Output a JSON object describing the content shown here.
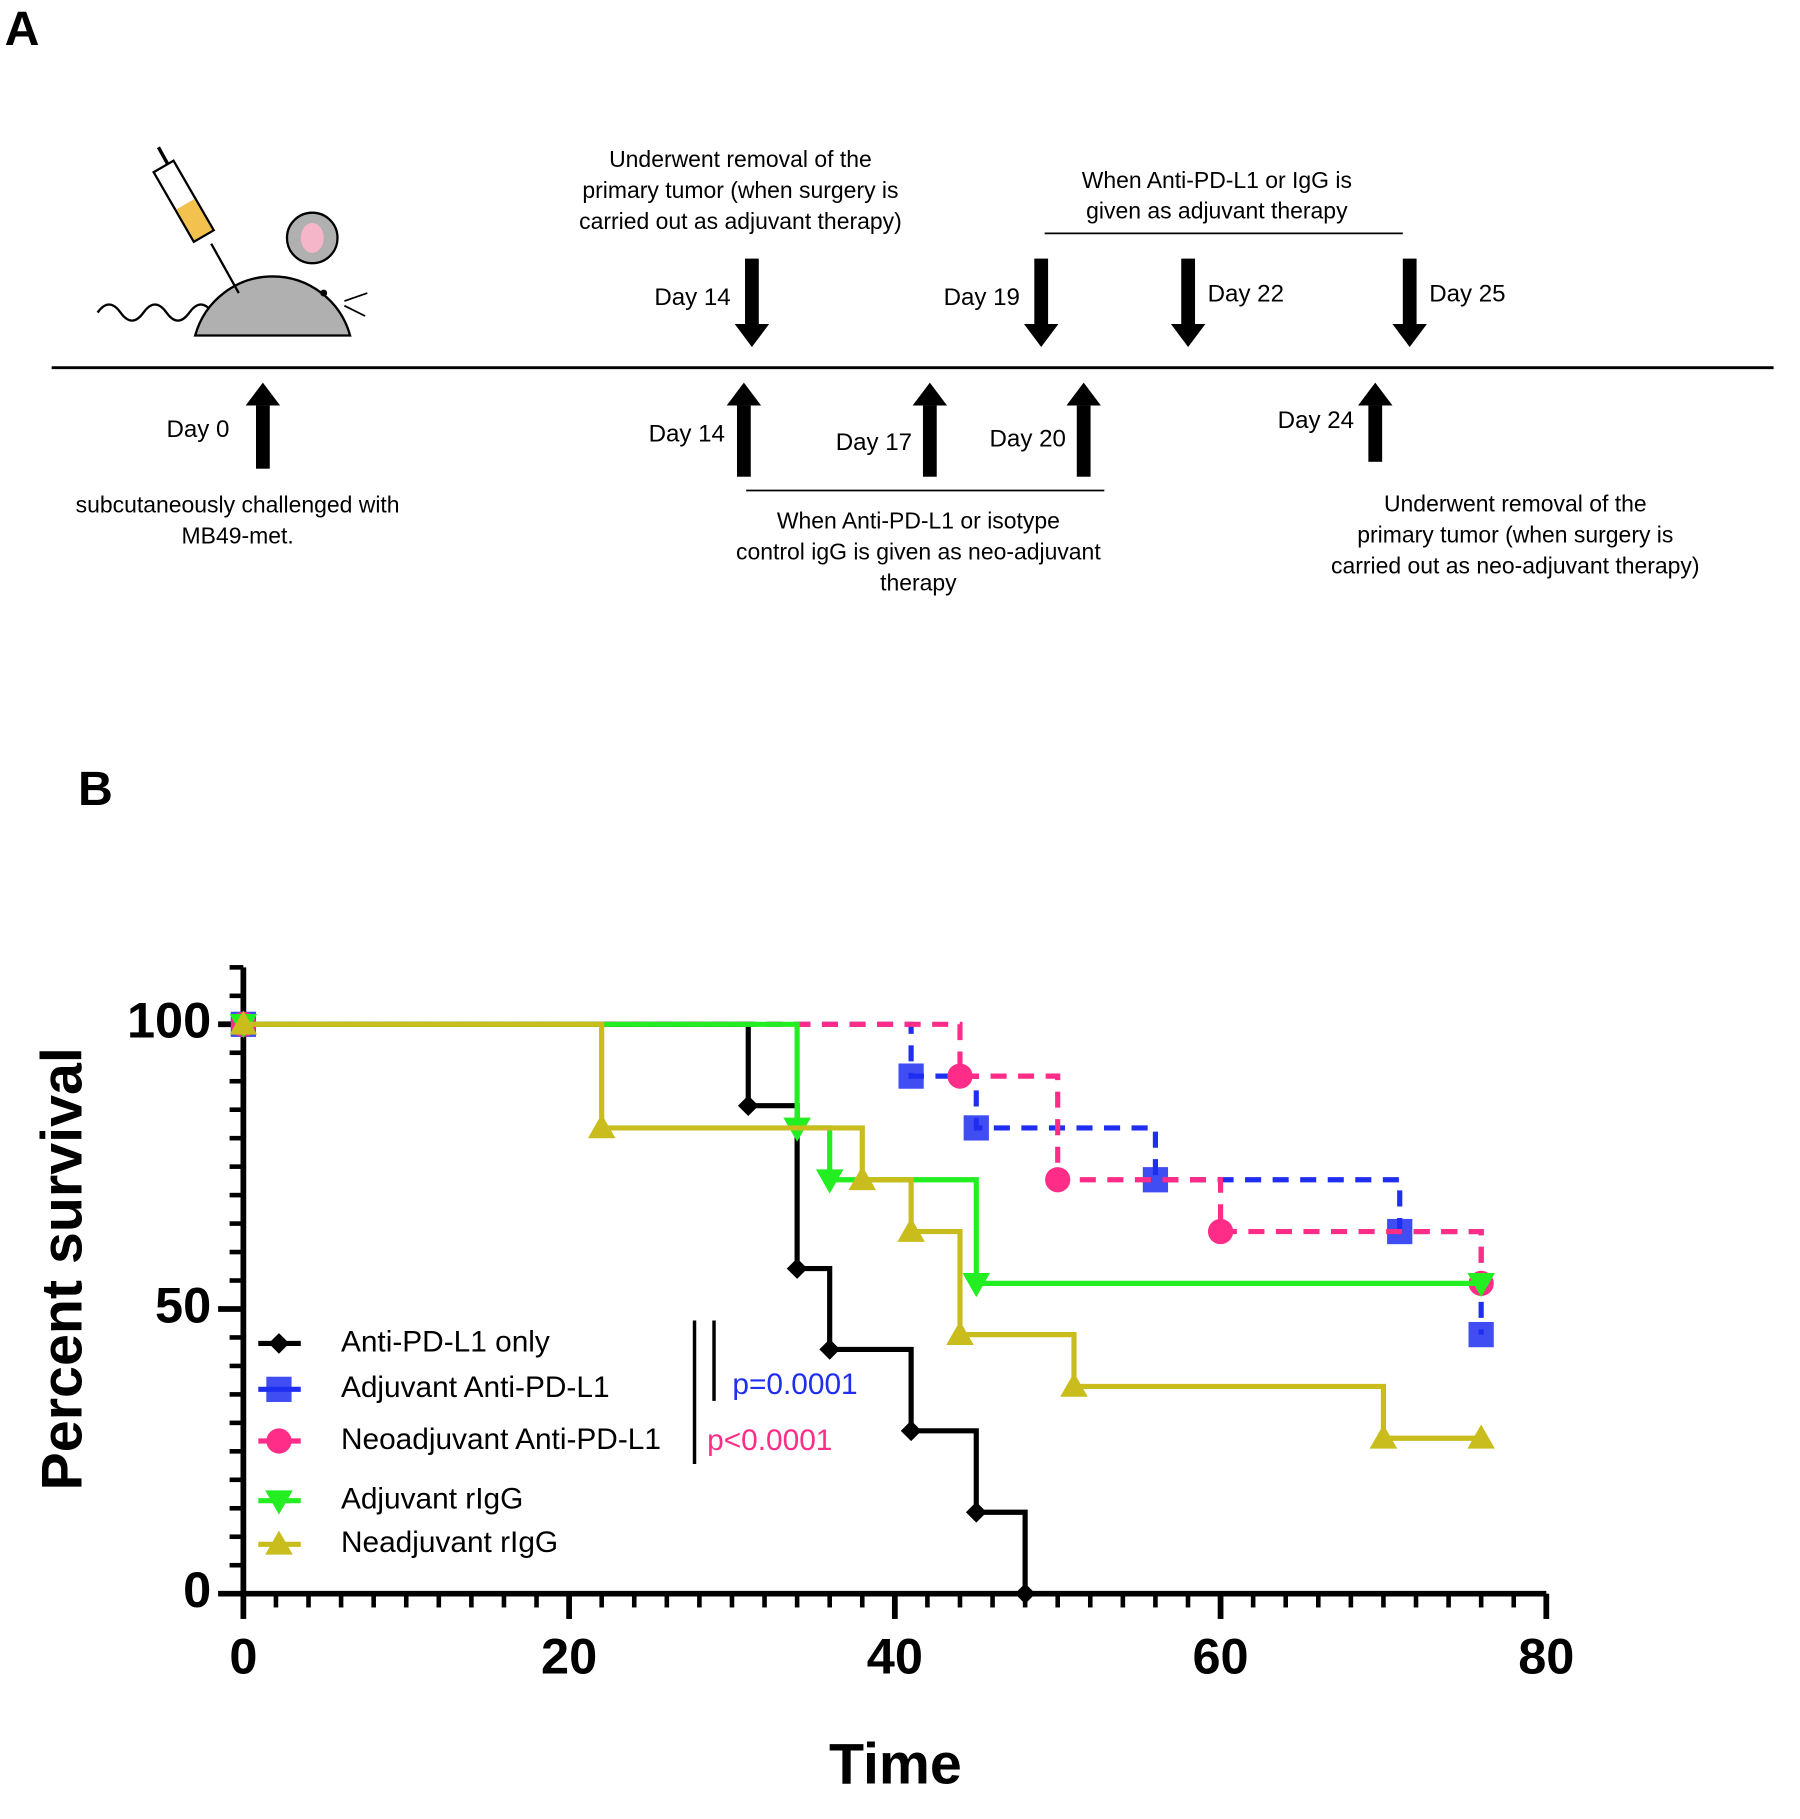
{
  "diagram": {
    "panel_label": "A",
    "day_labels_top": [
      "Day 14",
      "Day 19",
      "Day 22",
      "Day 25"
    ],
    "day_labels_bottom": [
      "Day 0",
      "Day 14",
      "Day 17",
      "Day 20",
      "Day 24"
    ],
    "notes": [
      [
        "Underwent removal of the",
        "primary tumor (when surgery is",
        "carried out as adjuvant therapy)"
      ],
      [
        "When Anti-PD-L1 or IgG is",
        "given as adjuvant therapy"
      ],
      [
        "subcutaneously  challenged  with",
        "MB49-met."
      ],
      [
        "When Anti-PD-L1 or isotype",
        "control igG is given as neo-adjuvant",
        "therapy"
      ],
      [
        "Underwent removal of the",
        "primary tumor (when surgery is",
        "carried out as neo-adjuvant therapy)"
      ]
    ]
  },
  "chart_data": {
    "type": "step",
    "panel_label": "B",
    "xlabel": "Time",
    "ylabel": "Percent survival",
    "xlim": [
      0,
      80
    ],
    "ylim": [
      0,
      110
    ],
    "xticks": [
      0,
      20,
      40,
      60,
      80
    ],
    "yticks": [
      0,
      50,
      100
    ],
    "xminorticks": [
      2,
      4,
      6,
      8,
      10,
      12,
      14,
      16,
      18,
      22,
      24,
      26,
      28,
      30,
      32,
      34,
      36,
      38,
      42,
      44,
      46,
      48,
      50,
      52,
      54,
      56,
      58,
      62,
      64,
      66,
      68,
      70,
      72,
      74,
      76,
      78
    ],
    "yminorticks": [
      5,
      10,
      15,
      20,
      25,
      30,
      35,
      40,
      45,
      55,
      60,
      65,
      70,
      75,
      80,
      85,
      90,
      95,
      105,
      110
    ],
    "series": [
      {
        "name": "Anti-PD-L1 only",
        "color": "#000000",
        "marker": "diamond",
        "dashed": false,
        "x": [
          0,
          31,
          34,
          36,
          41,
          45,
          48
        ],
        "values": [
          100,
          85.7,
          57.1,
          42.9,
          28.6,
          14.3,
          0
        ]
      },
      {
        "name": "Adjuvant Anti-PD-L1",
        "color": "#1f2ef0",
        "marker": "square",
        "dashed": true,
        "x": [
          0,
          41,
          45,
          56,
          71,
          76
        ],
        "values": [
          100,
          90.9,
          81.8,
          72.7,
          63.6,
          45.5
        ]
      },
      {
        "name": "Neoadjuvant Anti-PD-L1",
        "color": "#ff2d87",
        "marker": "circle",
        "dashed": true,
        "x": [
          0,
          44,
          50,
          60,
          76
        ],
        "values": [
          100,
          90.9,
          72.7,
          63.6,
          54.5
        ]
      },
      {
        "name": "Adjuvant rIgG",
        "color": "#22ee22",
        "marker": "triangle-down",
        "dashed": false,
        "x": [
          0,
          34,
          36,
          45,
          76
        ],
        "values": [
          100,
          81.8,
          72.7,
          54.5,
          54.5
        ]
      },
      {
        "name": "Neadjuvant rIgG",
        "color": "#c8bd1c",
        "marker": "triangle-up",
        "dashed": false,
        "x": [
          0,
          22,
          38,
          41,
          44,
          51,
          70,
          76
        ],
        "values": [
          100,
          81.8,
          72.7,
          63.6,
          45.5,
          36.4,
          27.3,
          27.3
        ]
      }
    ],
    "annotations": [
      {
        "text": "p=0.0001",
        "color": "#1f2ef0"
      },
      {
        "text": "p<0.0001",
        "color": "#ff2d87"
      }
    ]
  }
}
